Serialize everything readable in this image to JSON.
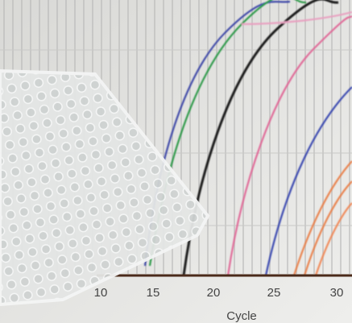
{
  "axis": {
    "ticks": [
      "10",
      "15",
      "20",
      "25",
      "30"
    ],
    "label": "Cycle"
  }
}
